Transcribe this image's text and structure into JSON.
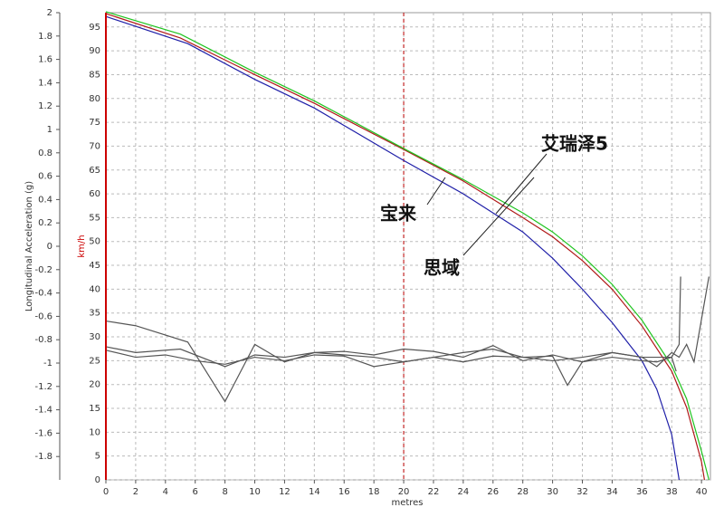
{
  "chart_data": {
    "type": "line",
    "x_label": "metres",
    "y_label": "km/h",
    "y2_label": "Longitudinal Acceleration (g)",
    "xlim": [
      0,
      40.6
    ],
    "xticks": [
      0,
      2,
      4,
      6,
      8,
      10,
      12,
      14,
      16,
      18,
      20,
      22,
      24,
      26,
      28,
      30,
      32,
      34,
      36,
      38,
      40
    ],
    "ylim": [
      0,
      98
    ],
    "yticks": [
      0,
      5,
      10,
      15,
      20,
      25,
      30,
      35,
      40,
      45,
      50,
      55,
      60,
      65,
      70,
      75,
      80,
      85,
      90,
      95
    ],
    "y2lim": [
      -2,
      2
    ],
    "y2ticks": [
      -1.8,
      -1.6,
      -1.4,
      -1.2,
      -1,
      -0.8,
      -0.6,
      -0.4,
      -0.2,
      0,
      0.2,
      0.4,
      0.6,
      0.8,
      1,
      1.2,
      1.4,
      1.6,
      1.8,
      2
    ],
    "grid": true,
    "marker_x": 20,
    "series": [
      {
        "name": "宝来",
        "color": "#1f1fa8",
        "x": [
          0,
          5.5,
          10,
          14,
          20,
          24,
          28,
          30,
          32,
          34,
          36,
          37,
          38,
          38.5
        ],
        "values": [
          97.2,
          91.5,
          84,
          78,
          67,
          60,
          52,
          46.5,
          40,
          33,
          25,
          19,
          9.5,
          0
        ]
      },
      {
        "name": "艾瑞泽5",
        "color": "#b01818",
        "x": [
          0,
          5,
          10,
          14,
          20,
          24,
          28,
          30,
          32,
          34,
          36,
          38,
          39,
          40,
          40.2
        ],
        "values": [
          97.8,
          92.7,
          85,
          79,
          69.3,
          62.7,
          55,
          51,
          46,
          40,
          32.3,
          22.8,
          15.2,
          3.8,
          0
        ]
      },
      {
        "name": "思域",
        "color": "#1fc41f",
        "x": [
          0,
          5,
          10,
          14,
          20,
          24,
          28,
          30,
          32,
          34,
          36,
          38,
          39,
          40,
          40.5
        ],
        "values": [
          98.2,
          93.5,
          85.5,
          79.5,
          69.5,
          63,
          56,
          52,
          47,
          41,
          33.5,
          24,
          17,
          6,
          0
        ]
      },
      {
        "color": "#555555",
        "axis": "y2",
        "x": [
          0,
          2,
          5.5,
          8,
          10,
          12,
          14,
          16,
          18,
          20,
          22,
          24,
          26,
          28,
          30,
          31,
          32,
          34,
          36,
          37,
          38,
          38.5,
          38.6
        ],
        "values": [
          -0.64,
          -0.68,
          -0.82,
          -1.33,
          -0.84,
          -0.99,
          -0.91,
          -0.93,
          -0.95,
          -0.99,
          -0.95,
          -0.91,
          -0.88,
          -0.95,
          -0.94,
          -1.19,
          -0.99,
          -0.95,
          -0.98,
          -0.99,
          -0.95,
          -0.84,
          -0.26
        ]
      },
      {
        "color": "#555555",
        "axis": "y2",
        "x": [
          0,
          2,
          5,
          8,
          10,
          12,
          14,
          16,
          18,
          20,
          22,
          24,
          26,
          28,
          30,
          32,
          34,
          36,
          37,
          38,
          38.5,
          39,
          39.5,
          40.5
        ],
        "values": [
          -0.86,
          -0.91,
          -0.88,
          -1.03,
          -0.93,
          -0.95,
          -0.91,
          -0.9,
          -0.93,
          -0.88,
          -0.9,
          -0.95,
          -0.85,
          -0.98,
          -0.93,
          -0.99,
          -0.91,
          -0.95,
          -1.03,
          -0.91,
          -0.95,
          -0.84,
          -0.99,
          -0.26
        ]
      },
      {
        "color": "#555555",
        "axis": "y2",
        "x": [
          0,
          2,
          4,
          6,
          8,
          10,
          12,
          14,
          16,
          18,
          20,
          22,
          24,
          26,
          28,
          30,
          32,
          34,
          36,
          38,
          38.3
        ],
        "values": [
          -0.89,
          -0.95,
          -0.93,
          -0.98,
          -1.01,
          -0.95,
          -0.98,
          -0.93,
          -0.94,
          -1.03,
          -0.99,
          -0.95,
          -0.99,
          -0.94,
          -0.95,
          -0.98,
          -0.95,
          -0.91,
          -0.95,
          -0.95,
          -1.07
        ]
      }
    ]
  }
}
